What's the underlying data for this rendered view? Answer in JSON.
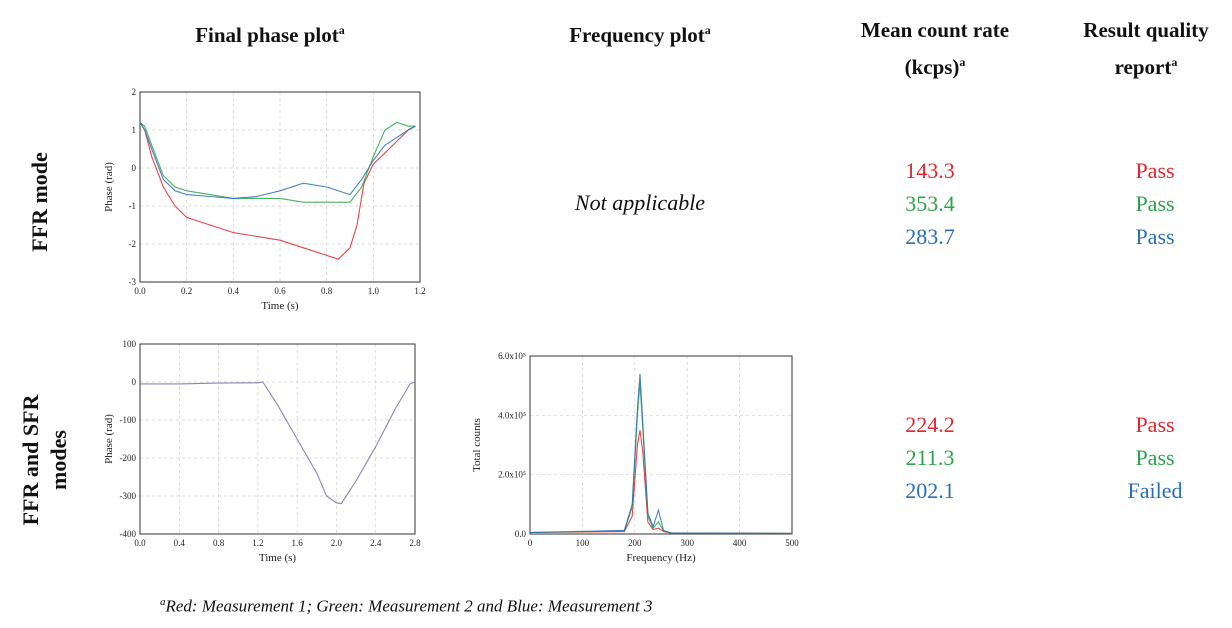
{
  "headers": {
    "phase": "Final phase plot",
    "frequency": "Frequency plot",
    "count_line1": "Mean count rate",
    "count_line2": "(kcps)",
    "quality_line1": "Result quality",
    "quality_line2": "report",
    "superscript": "a"
  },
  "rows": [
    {
      "label": "FFR mode",
      "frequency_text": "Not applicable",
      "count_rates": [
        "143.3",
        "353.4",
        "283.7"
      ],
      "quality": [
        "Pass",
        "Pass",
        "Pass"
      ]
    },
    {
      "label_line1": "FFR and SFR",
      "label_line2": "modes",
      "count_rates": [
        "224.2",
        "211.3",
        "202.1"
      ],
      "quality": [
        "Pass",
        "Pass",
        "Failed"
      ]
    }
  ],
  "footnote": {
    "sup": "a",
    "text": "Red: Measurement 1; Green: Measurement 2 and Blue: Measurement 3"
  },
  "colors": {
    "red": "#e3262b",
    "green": "#2ca24a",
    "blue": "#2a6fb5"
  },
  "chart_data": [
    {
      "type": "line",
      "xlabel": "Time (s)",
      "ylabel": "Phase (rad)",
      "xlim": [
        0,
        1.2
      ],
      "ylim": [
        -3,
        2
      ],
      "xticks": [
        "0.0",
        "0.2",
        "0.4",
        "0.6",
        "0.8",
        "1.0",
        "1.2"
      ],
      "yticks": [
        "2",
        "1",
        "0",
        "-1",
        "-2",
        "-3"
      ],
      "grid": true,
      "series": [
        {
          "color": "#e3262b",
          "x": [
            0,
            0.02,
            0.05,
            0.1,
            0.15,
            0.2,
            0.3,
            0.4,
            0.5,
            0.6,
            0.7,
            0.8,
            0.85,
            0.9,
            0.93,
            0.96,
            1.0,
            1.05,
            1.1,
            1.15,
            1.18
          ],
          "y": [
            1.2,
            1.0,
            0.3,
            -0.5,
            -1.0,
            -1.3,
            -1.5,
            -1.7,
            -1.8,
            -1.9,
            -2.1,
            -2.3,
            -2.4,
            -2.1,
            -1.5,
            -0.4,
            0.1,
            0.4,
            0.7,
            1.0,
            1.1
          ]
        },
        {
          "color": "#2ca24a",
          "x": [
            0,
            0.02,
            0.05,
            0.1,
            0.15,
            0.2,
            0.3,
            0.4,
            0.5,
            0.6,
            0.7,
            0.8,
            0.9,
            0.95,
            1.0,
            1.05,
            1.1,
            1.15,
            1.18
          ],
          "y": [
            1.2,
            1.1,
            0.6,
            -0.2,
            -0.5,
            -0.6,
            -0.7,
            -0.8,
            -0.8,
            -0.8,
            -0.9,
            -0.9,
            -0.9,
            -0.5,
            0.3,
            1.0,
            1.2,
            1.1,
            1.1
          ]
        },
        {
          "color": "#2a6fb5",
          "x": [
            0,
            0.02,
            0.05,
            0.1,
            0.15,
            0.2,
            0.3,
            0.4,
            0.5,
            0.6,
            0.7,
            0.8,
            0.9,
            0.95,
            1.0,
            1.05,
            1.1,
            1.15,
            1.18
          ],
          "y": [
            1.2,
            1.0,
            0.5,
            -0.3,
            -0.6,
            -0.7,
            -0.75,
            -0.8,
            -0.75,
            -0.6,
            -0.4,
            -0.5,
            -0.7,
            -0.3,
            0.2,
            0.6,
            0.8,
            1.0,
            1.1
          ]
        }
      ]
    },
    {
      "type": "line",
      "xlabel": "Time (s)",
      "ylabel": "Phase (rad)",
      "xlim": [
        0,
        2.8
      ],
      "ylim": [
        -400,
        100
      ],
      "xticks": [
        "0.0",
        "0.4",
        "0.8",
        "1.2",
        "1.6",
        "2.0",
        "2.4",
        "2.8"
      ],
      "yticks": [
        "100",
        "0",
        "-100",
        "-200",
        "-300",
        "-400"
      ],
      "grid": true,
      "series": [
        {
          "color": "#7a6fa8",
          "x": [
            0,
            0.4,
            0.8,
            1.2,
            1.25,
            1.4,
            1.6,
            1.8,
            1.9,
            2.0,
            2.05,
            2.2,
            2.4,
            2.6,
            2.75,
            2.8
          ],
          "y": [
            -5,
            -5,
            -3,
            -2,
            0,
            -60,
            -150,
            -240,
            -300,
            -318,
            -320,
            -260,
            -170,
            -70,
            -5,
            0
          ]
        }
      ]
    },
    {
      "type": "line",
      "xlabel": "Frequency (Hz)",
      "ylabel": "Total counts",
      "xlim": [
        0,
        500
      ],
      "ylim": [
        0,
        600000
      ],
      "xticks": [
        "0",
        "100",
        "200",
        "300",
        "400",
        "500"
      ],
      "yticks": [
        "6.0x10⁵",
        "4.0x10⁵",
        "2.0x10⁵",
        "0.0"
      ],
      "grid": true,
      "series": [
        {
          "color": "#e3262b",
          "x": [
            0,
            180,
            195,
            205,
            210,
            215,
            225,
            235,
            245,
            255,
            270,
            500
          ],
          "y": [
            5000,
            8000,
            60000,
            300000,
            350000,
            280000,
            40000,
            15000,
            20000,
            8000,
            3000,
            2000
          ]
        },
        {
          "color": "#2ca24a",
          "x": [
            0,
            180,
            195,
            205,
            210,
            215,
            225,
            235,
            245,
            255,
            270,
            500
          ],
          "y": [
            5000,
            10000,
            90000,
            400000,
            510000,
            360000,
            60000,
            20000,
            40000,
            10000,
            3000,
            2000
          ]
        },
        {
          "color": "#2a6fb5",
          "x": [
            0,
            180,
            195,
            205,
            210,
            215,
            225,
            235,
            245,
            255,
            270,
            500
          ],
          "y": [
            5000,
            12000,
            100000,
            420000,
            540000,
            380000,
            70000,
            25000,
            80000,
            12000,
            3000,
            2000
          ]
        }
      ]
    }
  ]
}
